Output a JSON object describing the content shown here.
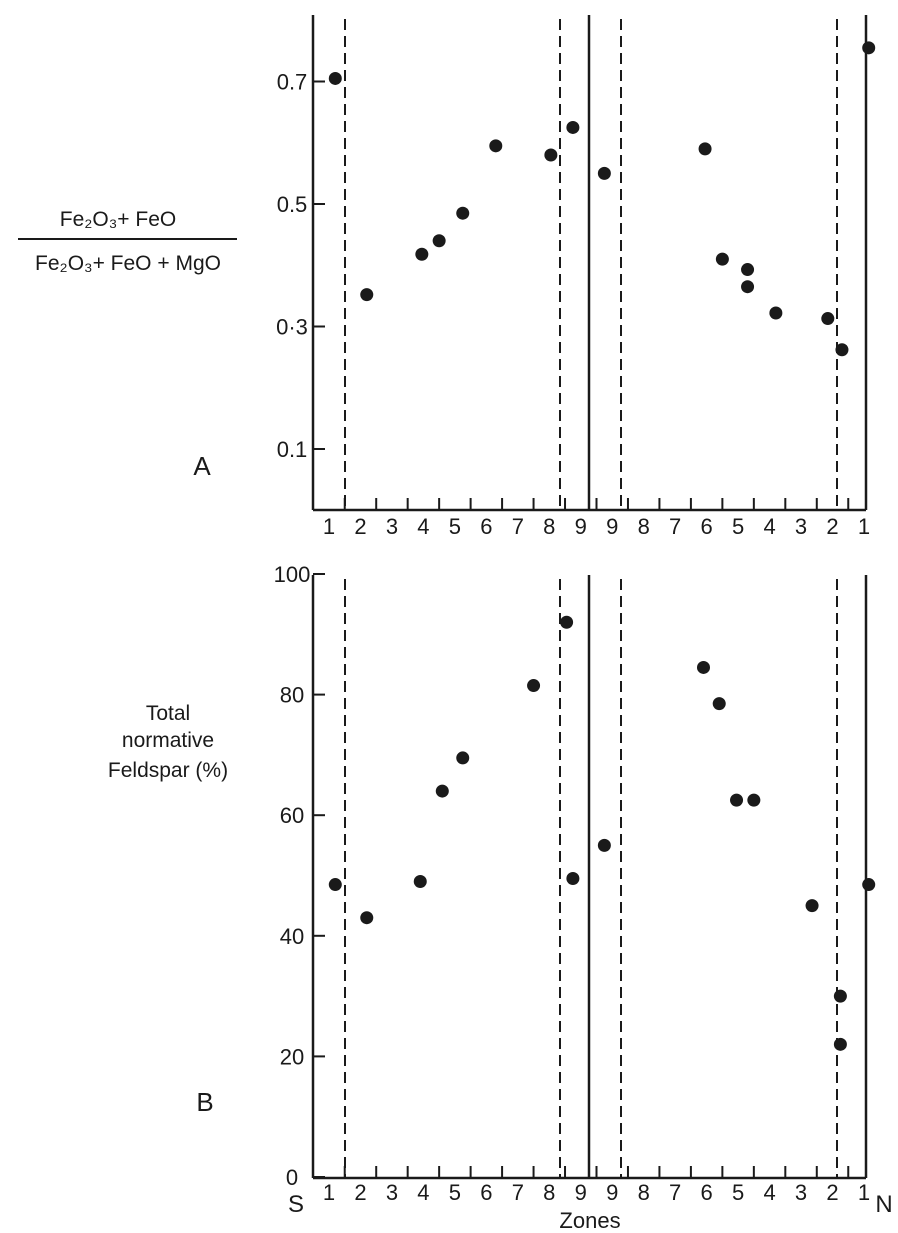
{
  "chart_data": [
    {
      "type": "scatter",
      "panel": "A",
      "ylabel_numerator": "Fe₂O₃+ FeO",
      "ylabel_denominator": "Fe₂O₃+ FeO + MgO",
      "yticks": [
        "0.7",
        "0.5",
        "0·3",
        "0.1"
      ],
      "ytick_values": [
        0.7,
        0.5,
        0.3,
        0.1
      ],
      "ylim": [
        0.0,
        0.8
      ],
      "zone_labels": [
        "1",
        "2",
        "3",
        "4",
        "5",
        "6",
        "7",
        "8",
        "9",
        "9",
        "8",
        "7",
        "6",
        "5",
        "4",
        "3",
        "2",
        "1"
      ],
      "zone_positions": [
        1,
        2,
        3,
        4,
        5,
        6,
        7,
        8,
        9,
        10,
        11,
        12,
        13,
        14,
        15,
        16,
        17,
        18
      ],
      "x": [
        1.2,
        2.2,
        3.95,
        4.5,
        5.25,
        6.3,
        8.05,
        8.75,
        9.75,
        12.95,
        13.5,
        14.3,
        14.3,
        15.2,
        16.85,
        17.3,
        18.15
      ],
      "y": [
        0.705,
        0.352,
        0.418,
        0.44,
        0.485,
        0.595,
        0.58,
        0.625,
        0.55,
        0.59,
        0.41,
        0.393,
        0.365,
        0.322,
        0.313,
        0.262,
        0.755
      ],
      "grid": false
    },
    {
      "type": "scatter",
      "panel": "B",
      "ylabel_lines": [
        "Total",
        "normative",
        "Feldspar (%)"
      ],
      "yticks": [
        "100",
        "80",
        "60",
        "40",
        "20",
        "0"
      ],
      "ytick_values": [
        100,
        80,
        60,
        40,
        20,
        0
      ],
      "ylim": [
        0,
        100
      ],
      "zone_labels": [
        "1",
        "2",
        "3",
        "4",
        "5",
        "6",
        "7",
        "8",
        "9",
        "9",
        "8",
        "7",
        "6",
        "5",
        "4",
        "3",
        "2",
        "1"
      ],
      "zone_positions": [
        1,
        2,
        3,
        4,
        5,
        6,
        7,
        8,
        9,
        10,
        11,
        12,
        13,
        14,
        15,
        16,
        17,
        18
      ],
      "xlabel": "Zones",
      "left_end_label": "S",
      "right_end_label": "N",
      "x": [
        1.2,
        2.2,
        3.9,
        4.6,
        5.25,
        7.5,
        8.55,
        8.75,
        9.75,
        12.9,
        13.4,
        13.95,
        14.5,
        16.35,
        17.25,
        17.25,
        18.15
      ],
      "y": [
        48.5,
        43,
        49,
        64,
        69.5,
        81.5,
        92,
        49.5,
        55,
        84.5,
        78.5,
        62.5,
        62.5,
        45,
        30,
        22,
        48.5
      ],
      "grid": false
    }
  ],
  "panel_labels": {
    "a": "A",
    "b": "B"
  },
  "colors": {
    "ink": "#1a1a1a",
    "background": "#ffffff"
  }
}
